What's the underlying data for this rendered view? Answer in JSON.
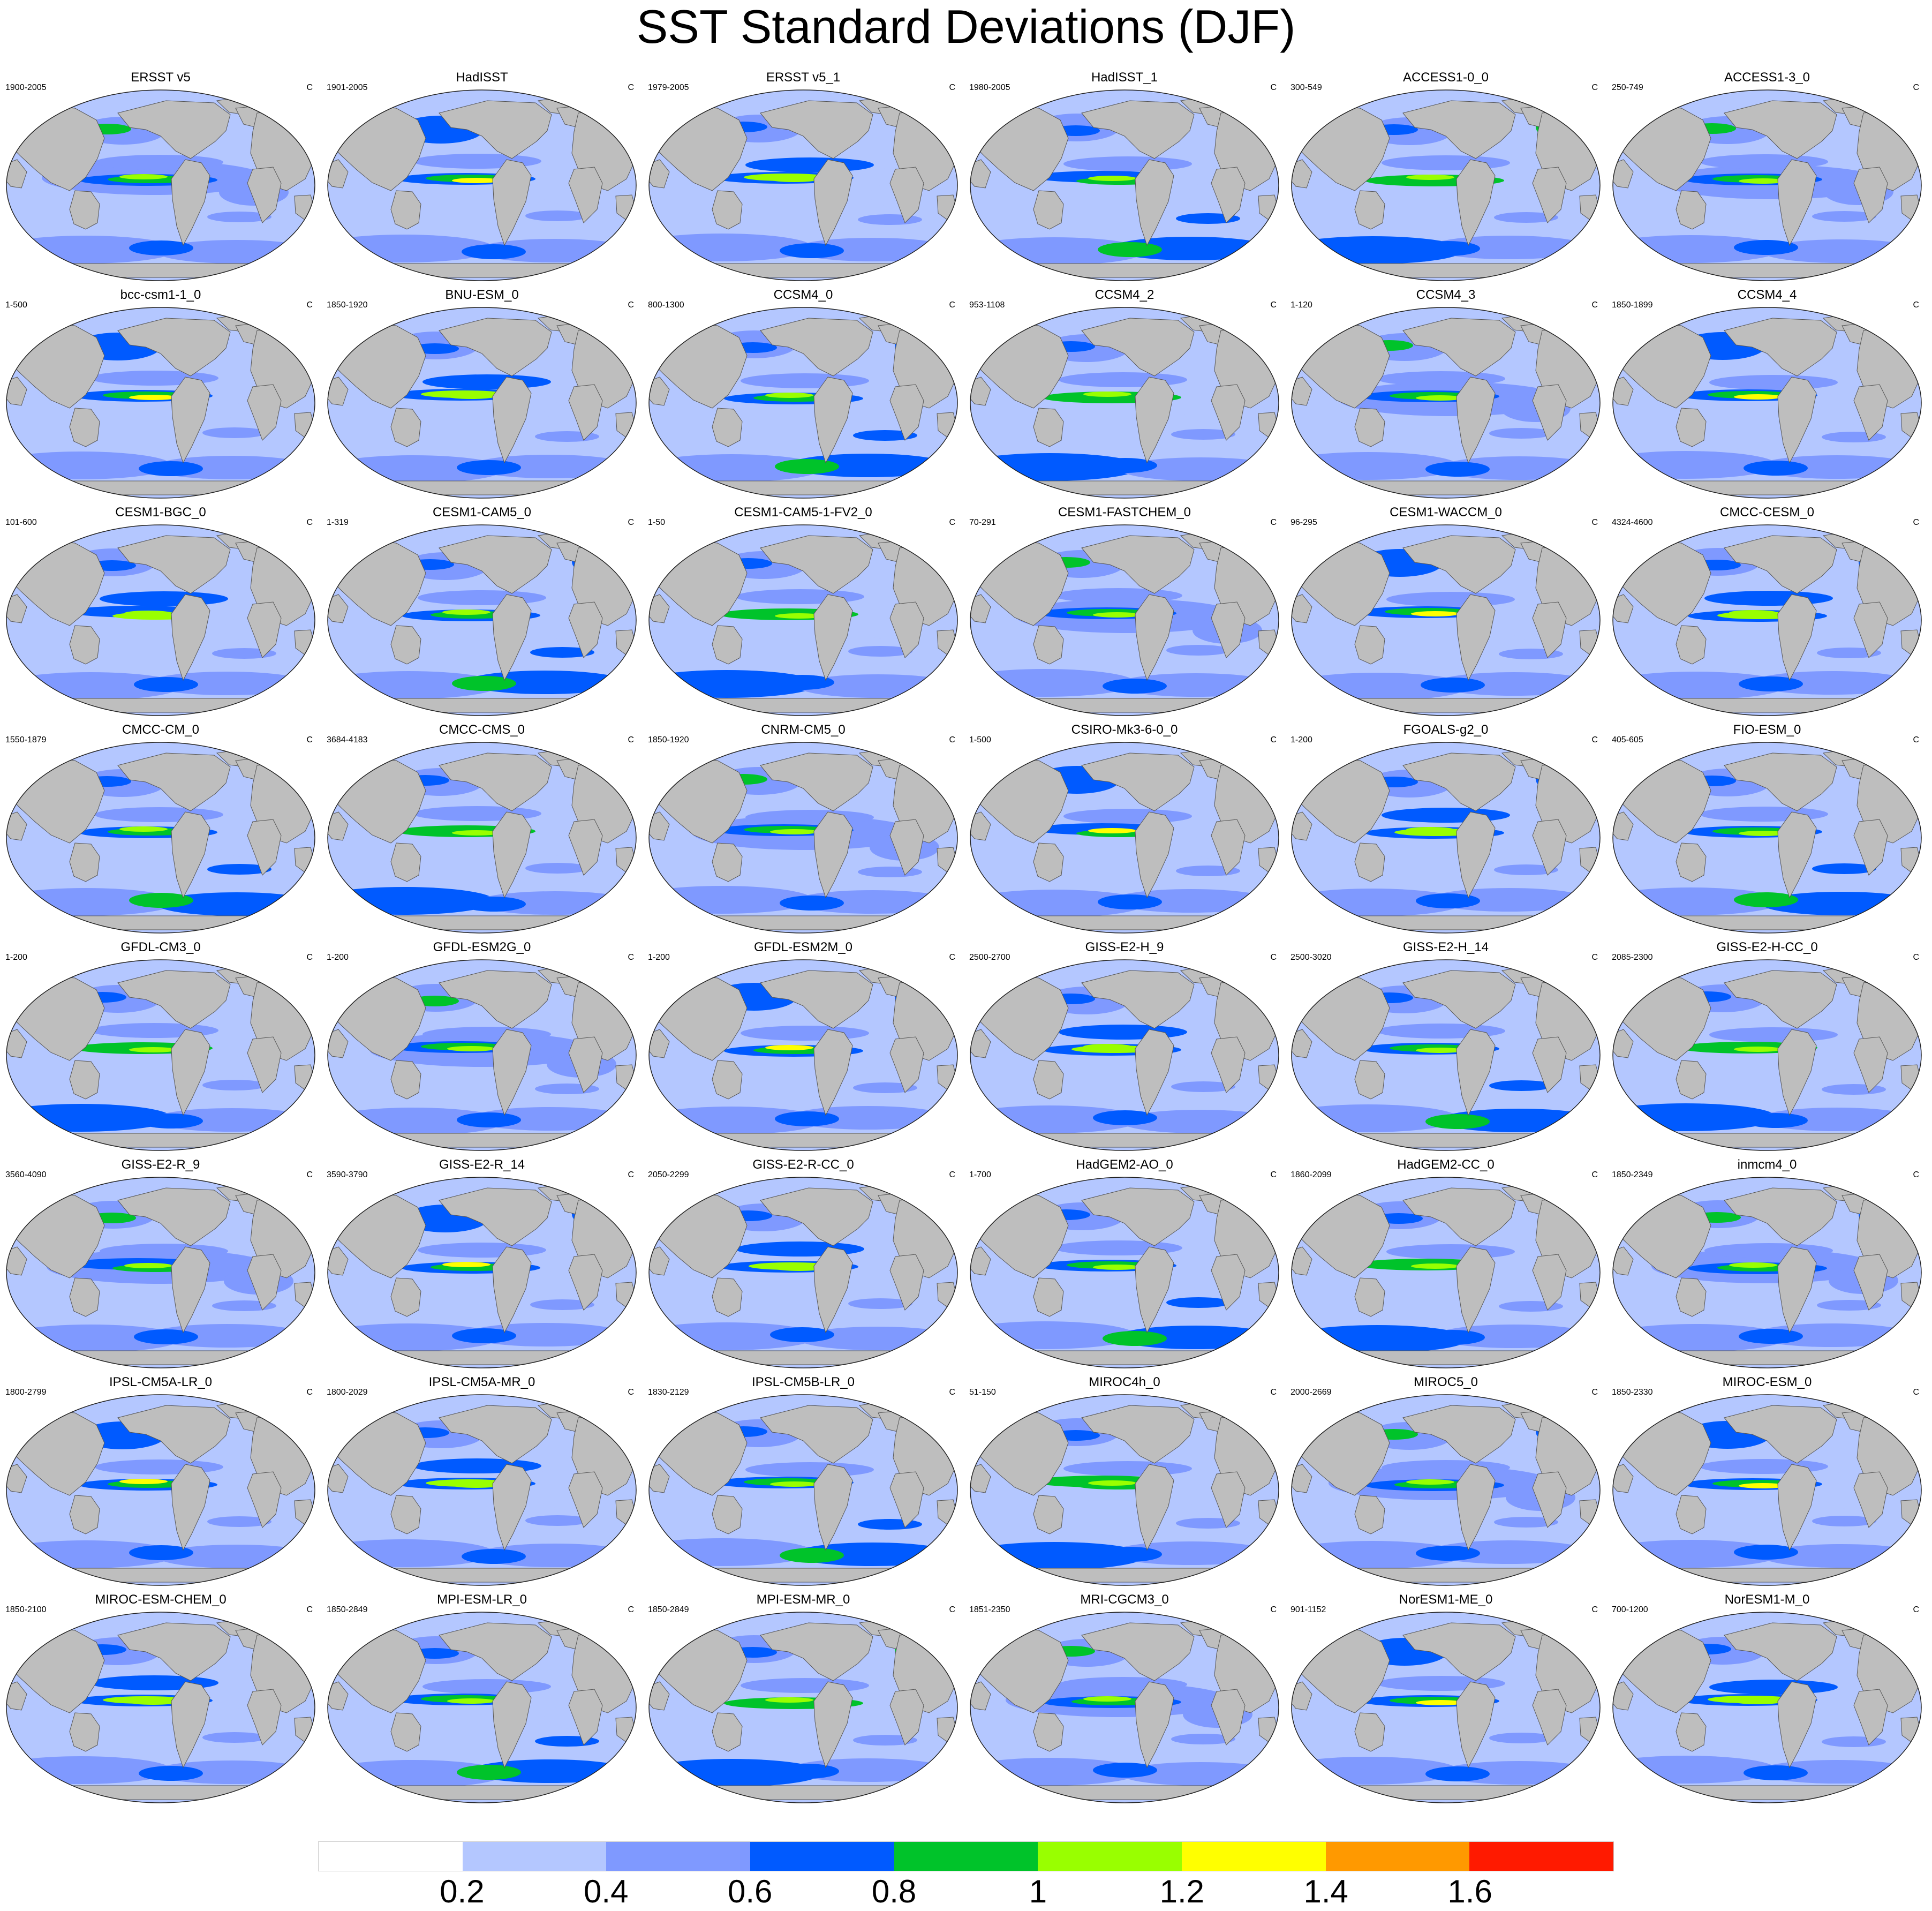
{
  "title": "SST Standard Deviations (DJF)",
  "units": "C",
  "colorbar": {
    "colors": [
      "#ffffff",
      "#b4c7ff",
      "#7f99ff",
      "#005aff",
      "#00c32a",
      "#99ff00",
      "#ffff00",
      "#ff9900",
      "#ff1a00"
    ],
    "labels": [
      "0.2",
      "0.4",
      "0.6",
      "0.8",
      "1",
      "1.2",
      "1.4",
      "1.6"
    ]
  },
  "land_color": "#bebebe",
  "panels": [
    {
      "name": "ERSST v5",
      "years": "1900-2005"
    },
    {
      "name": "HadISST",
      "years": "1901-2005"
    },
    {
      "name": "ERSST v5_1",
      "years": "1979-2005"
    },
    {
      "name": "HadISST_1",
      "years": "1980-2005"
    },
    {
      "name": "ACCESS1-0_0",
      "years": "300-549"
    },
    {
      "name": "ACCESS1-3_0",
      "years": "250-749"
    },
    {
      "name": "bcc-csm1-1_0",
      "years": "1-500"
    },
    {
      "name": "BNU-ESM_0",
      "years": "1850-1920"
    },
    {
      "name": "CCSM4_0",
      "years": "800-1300"
    },
    {
      "name": "CCSM4_2",
      "years": "953-1108"
    },
    {
      "name": "CCSM4_3",
      "years": "1-120"
    },
    {
      "name": "CCSM4_4",
      "years": "1850-1899"
    },
    {
      "name": "CESM1-BGC_0",
      "years": "101-600"
    },
    {
      "name": "CESM1-CAM5_0",
      "years": "1-319"
    },
    {
      "name": "CESM1-CAM5-1-FV2_0",
      "years": "1-50"
    },
    {
      "name": "CESM1-FASTCHEM_0",
      "years": "70-291"
    },
    {
      "name": "CESM1-WACCM_0",
      "years": "96-295"
    },
    {
      "name": "CMCC-CESM_0",
      "years": "4324-4600"
    },
    {
      "name": "CMCC-CM_0",
      "years": "1550-1879"
    },
    {
      "name": "CMCC-CMS_0",
      "years": "3684-4183"
    },
    {
      "name": "CNRM-CM5_0",
      "years": "1850-1920"
    },
    {
      "name": "CSIRO-Mk3-6-0_0",
      "years": "1-500"
    },
    {
      "name": "FGOALS-g2_0",
      "years": "1-200"
    },
    {
      "name": "FIO-ESM_0",
      "years": "405-605"
    },
    {
      "name": "GFDL-CM3_0",
      "years": "1-200"
    },
    {
      "name": "GFDL-ESM2G_0",
      "years": "1-200"
    },
    {
      "name": "GFDL-ESM2M_0",
      "years": "1-200"
    },
    {
      "name": "GISS-E2-H_9",
      "years": "2500-2700"
    },
    {
      "name": "GISS-E2-H_14",
      "years": "2500-3020"
    },
    {
      "name": "GISS-E2-H-CC_0",
      "years": "2085-2300"
    },
    {
      "name": "GISS-E2-R_9",
      "years": "3560-4090"
    },
    {
      "name": "GISS-E2-R_14",
      "years": "3590-3790"
    },
    {
      "name": "GISS-E2-R-CC_0",
      "years": "2050-2299"
    },
    {
      "name": "HadGEM2-AO_0",
      "years": "1-700"
    },
    {
      "name": "HadGEM2-CC_0",
      "years": "1860-2099"
    },
    {
      "name": "inmcm4_0",
      "years": "1850-2349"
    },
    {
      "name": "IPSL-CM5A-LR_0",
      "years": "1800-2799"
    },
    {
      "name": "IPSL-CM5A-MR_0",
      "years": "1800-2029"
    },
    {
      "name": "IPSL-CM5B-LR_0",
      "years": "1830-2129"
    },
    {
      "name": "MIROC4h_0",
      "years": "51-150"
    },
    {
      "name": "MIROC5_0",
      "years": "2000-2669"
    },
    {
      "name": "MIROC-ESM_0",
      "years": "1850-2330"
    },
    {
      "name": "MIROC-ESM-CHEM_0",
      "years": "1850-2100"
    },
    {
      "name": "MPI-ESM-LR_0",
      "years": "1850-2849"
    },
    {
      "name": "MPI-ESM-MR_0",
      "years": "1850-2849"
    },
    {
      "name": "MRI-CGCM3_0",
      "years": "1851-2350"
    },
    {
      "name": "NorESM1-ME_0",
      "years": "901-1152"
    },
    {
      "name": "NorESM1-M_0",
      "years": "700-1200"
    }
  ]
}
